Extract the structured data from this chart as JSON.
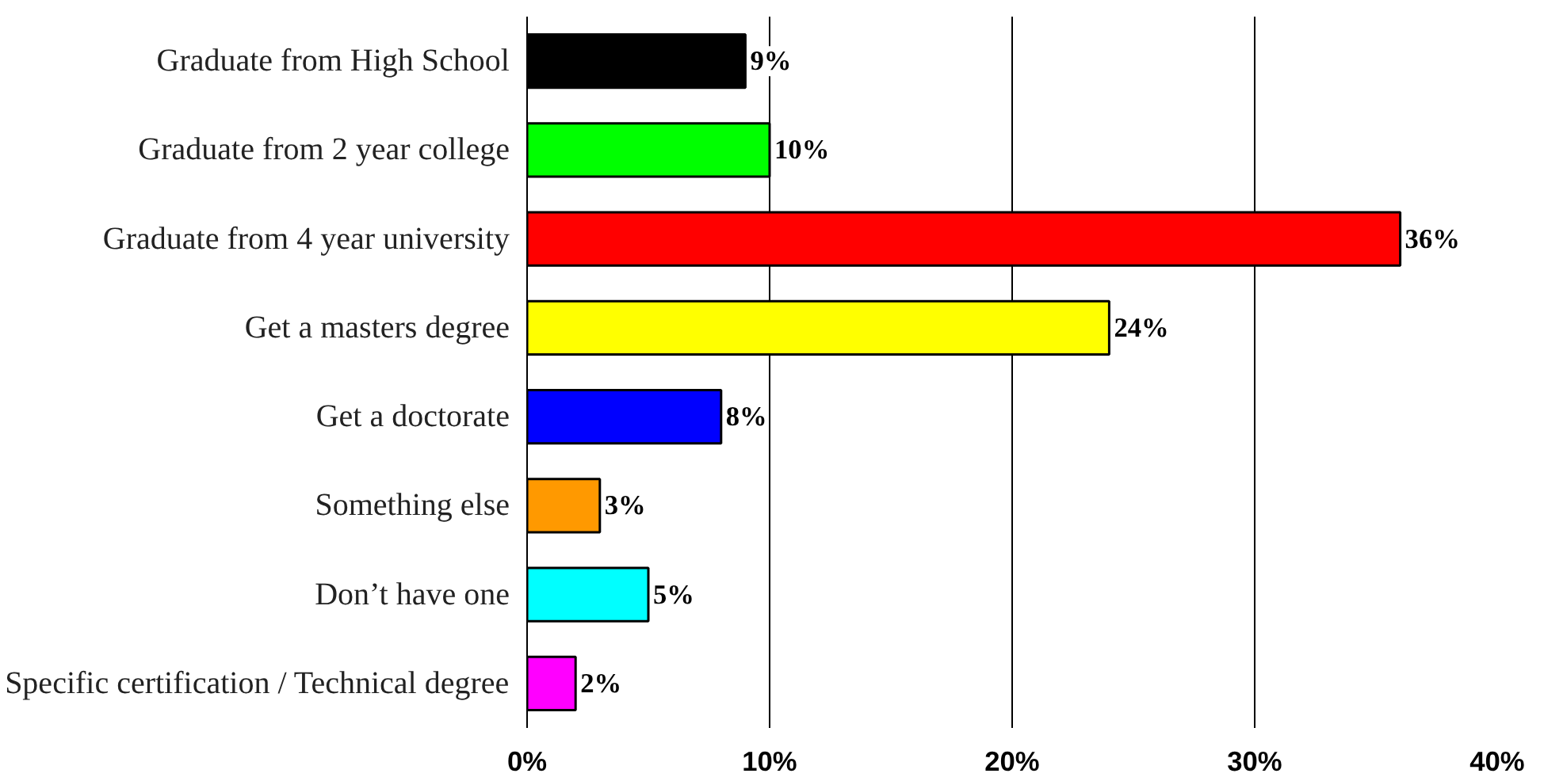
{
  "chart_data": {
    "type": "bar",
    "orientation": "horizontal",
    "categories": [
      "Graduate from High School",
      "Graduate from 2 year college",
      "Graduate from 4 year university",
      "Get a masters degree",
      "Get a doctorate",
      "Something else",
      "Don’t have one",
      "Specific certification / Technical degree"
    ],
    "values": [
      9,
      10,
      36,
      24,
      8,
      3,
      5,
      2
    ],
    "colors": [
      "#000000",
      "#00ff00",
      "#ff0000",
      "#ffff00",
      "#0000ff",
      "#ff9900",
      "#00ffff",
      "#ff00ff"
    ],
    "value_labels": [
      "9%",
      "10%",
      "36%",
      "24%",
      "8%",
      "3%",
      "5%",
      "2%"
    ],
    "xlim": [
      0,
      40
    ],
    "xticks": [
      {
        "value": 0,
        "label": "0%"
      },
      {
        "value": 10,
        "label": "10%"
      },
      {
        "value": 20,
        "label": "20%"
      },
      {
        "value": 30,
        "label": "30%"
      },
      {
        "value": 40,
        "label": "40%"
      }
    ],
    "grid": "x"
  }
}
